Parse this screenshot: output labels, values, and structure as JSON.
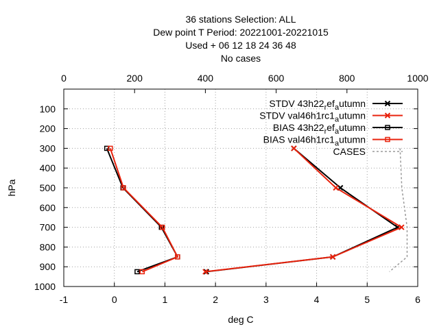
{
  "chart_data": {
    "type": "line",
    "title_lines": [
      "36 stations Selection: ALL",
      "Dew point T  Period: 20221001-20221015",
      "Used   + 06 12 18 24 36 48",
      "No cases"
    ],
    "xlabel": "deg C",
    "ylabel": "hPa",
    "xlim": [
      -1,
      6
    ],
    "x_ticks": [
      "-1",
      "0",
      "1",
      "2",
      "3",
      "4",
      "5",
      "6"
    ],
    "ylim": [
      1000,
      0
    ],
    "y_ticks": [
      "100",
      "200",
      "300",
      "400",
      "500",
      "600",
      "700",
      "800",
      "900",
      "1000"
    ],
    "x2lim": [
      0,
      1000
    ],
    "x2_ticks": [
      "0",
      "200",
      "400",
      "600",
      "800",
      "1000"
    ],
    "grid": true,
    "legend_position": "top-right",
    "levels": [
      300,
      500,
      700,
      850,
      925
    ],
    "series": [
      {
        "name": "STDV 43h22_ref_autumn",
        "legend_main": "STDV 43h22",
        "legend_sub": [
          "r",
          "ef",
          "a",
          "utumn"
        ],
        "color": "#000000",
        "marker": "x",
        "x": [
          3.55,
          4.47,
          5.6,
          4.32,
          1.82
        ],
        "y": [
          300,
          500,
          700,
          850,
          925
        ]
      },
      {
        "name": "STDV val46h1rc1_autumn",
        "legend_main": "STDV val46h1rc1",
        "legend_sub": [
          "",
          "",
          "a",
          "utumn"
        ],
        "color": "#e8220c",
        "marker": "x",
        "x": [
          3.55,
          4.38,
          5.68,
          4.32,
          1.8
        ],
        "y": [
          300,
          500,
          700,
          850,
          925
        ]
      },
      {
        "name": "BIAS 43h22_ref_autumn",
        "legend_main": "BIAS 43h22",
        "legend_sub": [
          "r",
          "ef",
          "a",
          "utumn"
        ],
        "color": "#000000",
        "marker": "square",
        "x": [
          -0.15,
          0.17,
          0.93,
          1.25,
          0.45
        ],
        "y": [
          300,
          500,
          700,
          850,
          925
        ]
      },
      {
        "name": "BIAS val46h1rc1_autumn",
        "legend_main": "BIAS val46h1rc1",
        "legend_sub": [
          "",
          "",
          "a",
          "utumn"
        ],
        "color": "#e8220c",
        "marker": "square",
        "x": [
          -0.08,
          0.18,
          0.95,
          1.25,
          0.55
        ],
        "y": [
          300,
          500,
          700,
          850,
          925
        ]
      },
      {
        "name": "CASES",
        "legend_main": "CASES",
        "legend_sub": [
          "",
          "",
          "",
          ""
        ],
        "color": "#999999",
        "marker": "none",
        "dashed": true,
        "axis": "x2",
        "x": [
          950,
          955,
          970,
          970,
          920
        ],
        "y": [
          300,
          500,
          700,
          850,
          925
        ]
      }
    ]
  }
}
